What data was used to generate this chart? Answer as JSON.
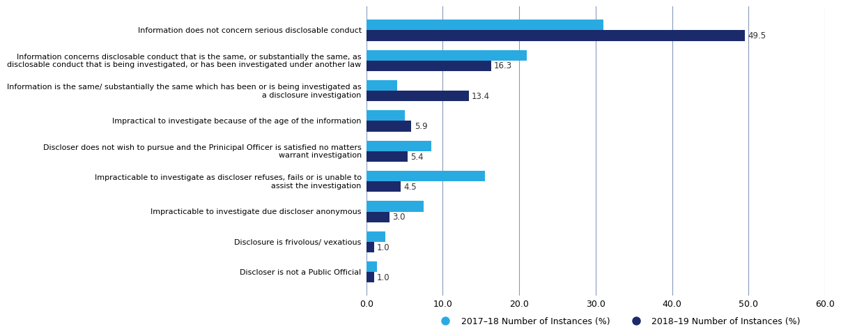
{
  "categories": [
    "Discloser is not a Public Official",
    "Disclosure is frivolous/ vexatious",
    "Impracticable to investigate due discloser anonymous",
    "Impracticable to investigate as discloser refuses, fails or is unable to\nassist the investigation",
    "Discloser does not wish to pursue and the Prinicipal Officer is satisfied no matters\nwarrant investigation",
    "Impractical to investigate because of the age of the information",
    "Information is the same/ substantially the same which has been or is being investigated as\na disclosure investigation",
    "Information concerns disclosable conduct that is the same, or substantially the same, as\ndisclosable conduct that is being investigated, or has been investigated under another law",
    "Information does not concern serious disclosable conduct"
  ],
  "values_2017_18": [
    1.4,
    2.5,
    7.5,
    15.5,
    8.5,
    5.0,
    4.0,
    21.0,
    31.0
  ],
  "values_2018_19": [
    1.0,
    1.0,
    3.0,
    4.5,
    5.4,
    5.9,
    13.4,
    16.3,
    49.5
  ],
  "labels_2018_19": [
    "1.0",
    "1.0",
    "3.0",
    "4.5",
    "5.4",
    "5.9",
    "13.4",
    "16.3",
    "49.5"
  ],
  "color_2017_18": "#29ABE2",
  "color_2018_19": "#1B2A6B",
  "xlim": [
    0,
    60
  ],
  "xticks": [
    0.0,
    10.0,
    20.0,
    30.0,
    40.0,
    50.0,
    60.0
  ],
  "bar_height": 0.35,
  "legend_labels": [
    "2017–18 Number of Instances (%)",
    "2018–19 Number of Instances (%)"
  ]
}
